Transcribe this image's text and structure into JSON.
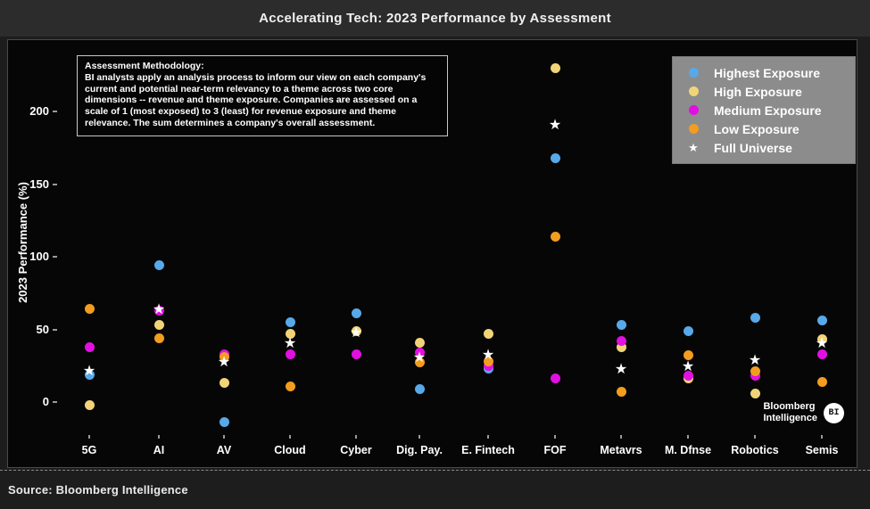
{
  "title": "Accelerating Tech: 2023 Performance by Assessment",
  "source": "Source: Bloomberg Intelligence",
  "methodology": {
    "heading": "Assessment Methodology:",
    "body": "BI analysts apply an analysis process to inform our view on each company's current and potential near-term relevancy to a theme across two core dimensions -- revenue and theme exposure. Companies are assessed on a scale of 1 (most exposed) to 3 (least) for revenue exposure and theme relevance. The sum determines a company's overall assessment."
  },
  "logo": {
    "line1": "Bloomberg",
    "line2": "Intelligence",
    "badge": "BI"
  },
  "chart_data": {
    "type": "scatter",
    "title": "Accelerating Tech: 2023 Performance by Assessment",
    "ylabel": "2023 Performance (%)",
    "xlabel": "",
    "categories": [
      "5G",
      "AI",
      "AV",
      "Cloud",
      "Cyber",
      "Dig. Pay.",
      "E. Fintech",
      "FOF",
      "Metavrs",
      "M. Dfnse",
      "Robotics",
      "Semis"
    ],
    "yticks": [
      0,
      50,
      100,
      150,
      200
    ],
    "ylim": [
      -28,
      248
    ],
    "grid": false,
    "legend_position": "top-right",
    "series": [
      {
        "name": "Highest Exposure",
        "color": "#57a9ea",
        "marker": "circle",
        "values": [
          19,
          94,
          -14,
          55,
          61,
          9,
          23,
          168,
          53,
          49,
          58,
          56
        ]
      },
      {
        "name": "High Exposure",
        "color": "#f2d478",
        "marker": "circle",
        "values": [
          -2,
          53,
          13,
          47,
          49,
          41,
          47,
          230,
          38,
          16,
          6,
          43
        ]
      },
      {
        "name": "Medium Exposure",
        "color": "#e20fe2",
        "marker": "circle",
        "values": [
          38,
          63,
          33,
          33,
          33,
          34,
          25,
          16,
          42,
          18,
          18,
          33
        ]
      },
      {
        "name": "Low Exposure",
        "color": "#f29d1f",
        "marker": "circle",
        "values": [
          64,
          44,
          31,
          11,
          null,
          27,
          28,
          114,
          7,
          32,
          21,
          14
        ]
      },
      {
        "name": "Full Universe",
        "color": "#ffffff",
        "marker": "star",
        "values": [
          21,
          63,
          27,
          40,
          47,
          30,
          32,
          190,
          22,
          24,
          28,
          40
        ]
      }
    ]
  }
}
